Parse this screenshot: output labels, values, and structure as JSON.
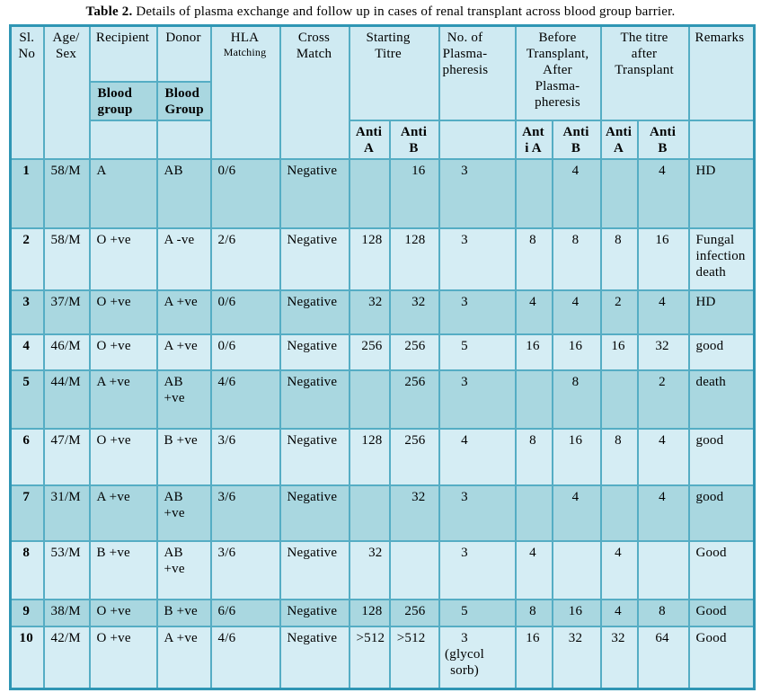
{
  "caption": {
    "label": "Table 2.",
    "text": "Details of plasma exchange and follow up in cases of renal transplant across blood group barrier."
  },
  "colors": {
    "row_dark": "#a9d7e0",
    "row_light": "#d5edf4",
    "header_bg": "#cfeaf2",
    "inner_border": "#55adc4",
    "outer_border": "#2f96b4"
  },
  "table": {
    "headers": {
      "sl_no": "Sl.\nNo",
      "age_sex": "Age/\nSex",
      "recipient": "Recipient",
      "donor": "Donor",
      "recipient_sub": "Blood\ngroup",
      "donor_sub": "Blood\nGroup",
      "hla_line1": "HLA",
      "hla_line2": "Matching",
      "cross_match": "Cross\nMatch",
      "starting_titre": "Starting Titre",
      "plasmapheresis": "No. of\nPlasma-\npheresis",
      "before_transplant": "Before\nTransplant,\nAfter Plasma-\npheresis",
      "titre_after": "The titre\nafter\nTransplant",
      "remarks": "Remarks",
      "anti_a_start": "Anti\nA",
      "anti_b_start": "Anti\nB",
      "anti_a_before": "Ant\ni A",
      "anti_b_before": "Anti\nB",
      "anti_a_after": "Anti\nA",
      "anti_b_after": "Anti\nB"
    },
    "rows": [
      [
        "1",
        "58/M",
        "A",
        "AB",
        "0/6",
        "Negative",
        "",
        "16",
        "3",
        "",
        "4",
        "",
        "4",
        "HD"
      ],
      [
        "2",
        "58/M",
        "O +ve",
        "A -ve",
        "2/6",
        "Negative",
        "128",
        "128",
        "3",
        "8",
        "8",
        "8",
        "16",
        "Fungal\ninfection\ndeath"
      ],
      [
        "3",
        "37/M",
        "O +ve",
        "A +ve",
        "0/6",
        "Negative",
        "32",
        "32",
        "3",
        "4",
        "4",
        "2",
        "4",
        "HD"
      ],
      [
        "4",
        "46/M",
        "O +ve",
        "A +ve",
        "0/6",
        "Negative",
        "256",
        "256",
        "5",
        "16",
        "16",
        "16",
        "32",
        "good"
      ],
      [
        "5",
        "44/M",
        "A +ve",
        "AB\n+ve",
        "4/6",
        "Negative",
        "",
        "256",
        "3",
        "",
        "8",
        "",
        "2",
        "death"
      ],
      [
        "6",
        "47/M",
        "O +ve",
        "B +ve",
        "3/6",
        "Negative",
        "128",
        "256",
        "4",
        "8",
        "16",
        "8",
        "4",
        "good"
      ],
      [
        "7",
        "31/M",
        "A +ve",
        "AB\n+ve",
        "3/6",
        "Negative",
        "",
        "32",
        "3",
        "",
        "4",
        "",
        "4",
        "good"
      ],
      [
        "8",
        "53/M",
        "B +ve",
        "AB\n+ve",
        "3/6",
        "Negative",
        "32",
        "",
        "3",
        "4",
        "",
        "4",
        "",
        "Good"
      ],
      [
        "9",
        "38/M",
        "O +ve",
        "B +ve",
        "6/6",
        "Negative",
        "128",
        "256",
        "5",
        "8",
        "16",
        "4",
        "8",
        "Good"
      ],
      [
        "10",
        "42/M",
        "O +ve",
        "A +ve",
        "4/6",
        "Negative",
        ">512",
        ">512",
        "3 (glycol\nsorb)",
        "16",
        "32",
        "32",
        "64",
        "Good"
      ]
    ]
  }
}
